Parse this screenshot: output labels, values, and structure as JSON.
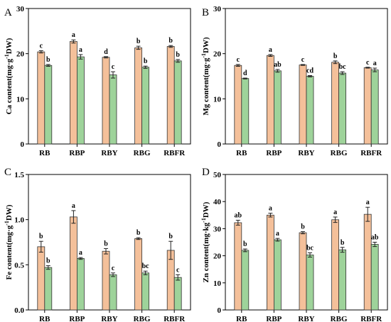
{
  "colors": {
    "series_1": "#f4c09a",
    "series_2": "#9ed39a",
    "outline": "#333333"
  },
  "chart_data": [
    {
      "type": "bar",
      "panel": "A",
      "categories": [
        "RB",
        "RBP",
        "RBY",
        "RBG",
        "RBFR"
      ],
      "ylabel": "Ca content(mg·g⁻¹DW)",
      "ylim": [
        0,
        30
      ],
      "yticks": [
        0,
        10,
        20,
        30
      ],
      "series": [
        {
          "values": [
            20.4,
            22.7,
            19.2,
            21.3,
            21.6
          ],
          "errors": [
            0.25,
            0.35,
            0.15,
            0.35,
            0.2
          ],
          "labels": [
            "c",
            "a",
            "d",
            "b",
            "b"
          ]
        },
        {
          "values": [
            17.4,
            19.3,
            15.3,
            17.0,
            18.4
          ],
          "errors": [
            0.2,
            0.5,
            0.7,
            0.25,
            0.3
          ],
          "labels": [
            "b",
            "a",
            "c",
            "b",
            "b"
          ]
        }
      ]
    },
    {
      "type": "bar",
      "panel": "B",
      "categories": [
        "RB",
        "RBP",
        "RBY",
        "RBG",
        "RBFR"
      ],
      "ylabel": "Mg content(mg·g⁻¹DW)",
      "ylim": [
        0,
        30
      ],
      "yticks": [
        0,
        10,
        20,
        30
      ],
      "series": [
        {
          "values": [
            17.4,
            19.6,
            17.5,
            18.1,
            16.9
          ],
          "errors": [
            0.2,
            0.2,
            0.1,
            0.3,
            0.1
          ],
          "labels": [
            "c",
            "a",
            "c",
            "b",
            "c"
          ]
        },
        {
          "values": [
            14.5,
            16.2,
            15.0,
            15.7,
            16.4
          ],
          "errors": [
            0.1,
            0.3,
            0.15,
            0.3,
            0.4
          ],
          "labels": [
            "d",
            "ab",
            "cd",
            "bc",
            "a"
          ]
        }
      ]
    },
    {
      "type": "bar",
      "panel": "C",
      "categories": [
        "RB",
        "RBP",
        "RBY",
        "RBG",
        "RBFR"
      ],
      "ylabel": "Fe content(mg·g⁻¹DW)",
      "ylim": [
        0,
        1.5
      ],
      "yticks": [
        0.0,
        0.5,
        1.0,
        1.5
      ],
      "tick_format": 1,
      "series": [
        {
          "values": [
            0.7,
            1.03,
            0.65,
            0.79,
            0.66
          ],
          "errors": [
            0.06,
            0.07,
            0.03,
            0.01,
            0.1
          ],
          "labels": [
            "b",
            "a",
            "b",
            "b",
            "b"
          ]
        },
        {
          "values": [
            0.47,
            0.57,
            0.39,
            0.41,
            0.36
          ],
          "errors": [
            0.02,
            0.01,
            0.02,
            0.02,
            0.03
          ],
          "labels": [
            "b",
            "a",
            "c",
            "bc",
            "c"
          ]
        }
      ]
    },
    {
      "type": "bar",
      "panel": "D",
      "categories": [
        "RB",
        "RBP",
        "RBY",
        "RBG",
        "RBFR"
      ],
      "ylabel": "Zn content(mg·kg⁻¹DW)",
      "ylim": [
        0,
        50
      ],
      "yticks": [
        0,
        10,
        20,
        30,
        40,
        50
      ],
      "series": [
        {
          "values": [
            32.2,
            35.0,
            28.5,
            33.3,
            35.3
          ],
          "errors": [
            0.9,
            0.7,
            0.4,
            1.0,
            2.6
          ],
          "labels": [
            "ab",
            "a",
            "b",
            "a",
            "a"
          ]
        },
        {
          "values": [
            22.0,
            25.9,
            20.3,
            22.2,
            24.2
          ],
          "errors": [
            0.5,
            0.5,
            0.8,
            0.9,
            0.8
          ],
          "labels": [
            "b",
            "a",
            "bc",
            "b",
            "ab"
          ]
        }
      ]
    }
  ]
}
